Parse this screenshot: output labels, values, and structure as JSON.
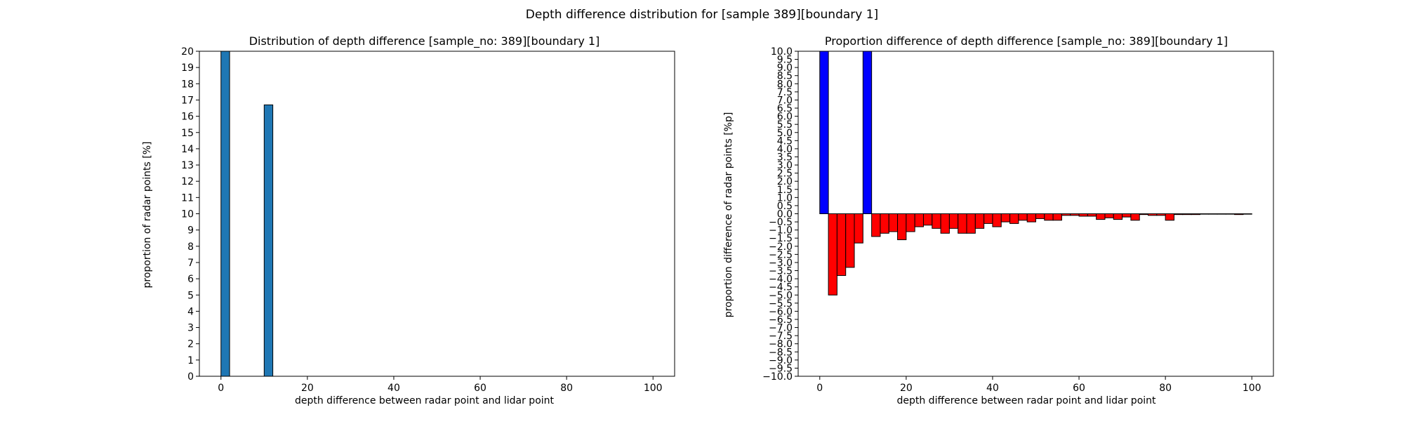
{
  "suptitle": "Depth difference distribution for [sample 389][boundary 1]",
  "chart_data": [
    {
      "type": "bar",
      "title": "Distribution of depth difference [sample_no: 389][boundary 1]",
      "xlabel": "depth difference between radar point and lidar point",
      "ylabel": "proportion of radar points [%]",
      "xlim": [
        -5,
        105
      ],
      "ylim": [
        0,
        20
      ],
      "xticks": [
        0,
        20,
        40,
        60,
        80,
        100
      ],
      "yticks": [
        0,
        1,
        2,
        3,
        4,
        5,
        6,
        7,
        8,
        9,
        10,
        11,
        12,
        13,
        14,
        15,
        16,
        17,
        18,
        19,
        20
      ],
      "bin_width": 2,
      "x": [
        0,
        10
      ],
      "values": [
        20,
        16.7
      ],
      "color": "#1f77b4",
      "edgecolor": "#000000",
      "grid": false
    },
    {
      "type": "bar",
      "title": "Proportion difference of depth difference [sample_no: 389][boundary 1]",
      "xlabel": "depth difference between radar point and lidar point",
      "ylabel": "proportion difference of radar points [%p]",
      "xlim": [
        -5,
        105
      ],
      "ylim": [
        -10,
        10
      ],
      "xticks": [
        0,
        20,
        40,
        60,
        80,
        100
      ],
      "ytick_step": 0.5,
      "bin_width": 2,
      "positive_color": "#0000ff",
      "negative_color": "#ff0000",
      "edgecolor": "#000000",
      "grid": false,
      "x": [
        0,
        2,
        4,
        6,
        8,
        10,
        12,
        14,
        16,
        18,
        20,
        22,
        24,
        26,
        28,
        30,
        32,
        34,
        36,
        38,
        40,
        42,
        44,
        46,
        48,
        50,
        52,
        54,
        56,
        58,
        60,
        62,
        64,
        66,
        68,
        70,
        72,
        74,
        76,
        78,
        80,
        82,
        84,
        86,
        88,
        90,
        92,
        94,
        96,
        98
      ],
      "values": [
        10.0,
        -5.0,
        -3.8,
        -3.3,
        -1.8,
        10.0,
        -1.4,
        -1.2,
        -1.1,
        -1.6,
        -1.1,
        -0.8,
        -0.7,
        -0.9,
        -1.2,
        -0.9,
        -1.2,
        -1.2,
        -0.9,
        -0.6,
        -0.8,
        -0.5,
        -0.6,
        -0.4,
        -0.5,
        -0.3,
        -0.4,
        -0.4,
        -0.1,
        -0.1,
        -0.15,
        -0.15,
        -0.35,
        -0.25,
        -0.35,
        -0.2,
        -0.4,
        -0.05,
        -0.1,
        -0.1,
        -0.4,
        -0.05,
        -0.05,
        -0.05,
        0.0,
        0.0,
        0.0,
        0.0,
        -0.05,
        0.0
      ]
    }
  ]
}
